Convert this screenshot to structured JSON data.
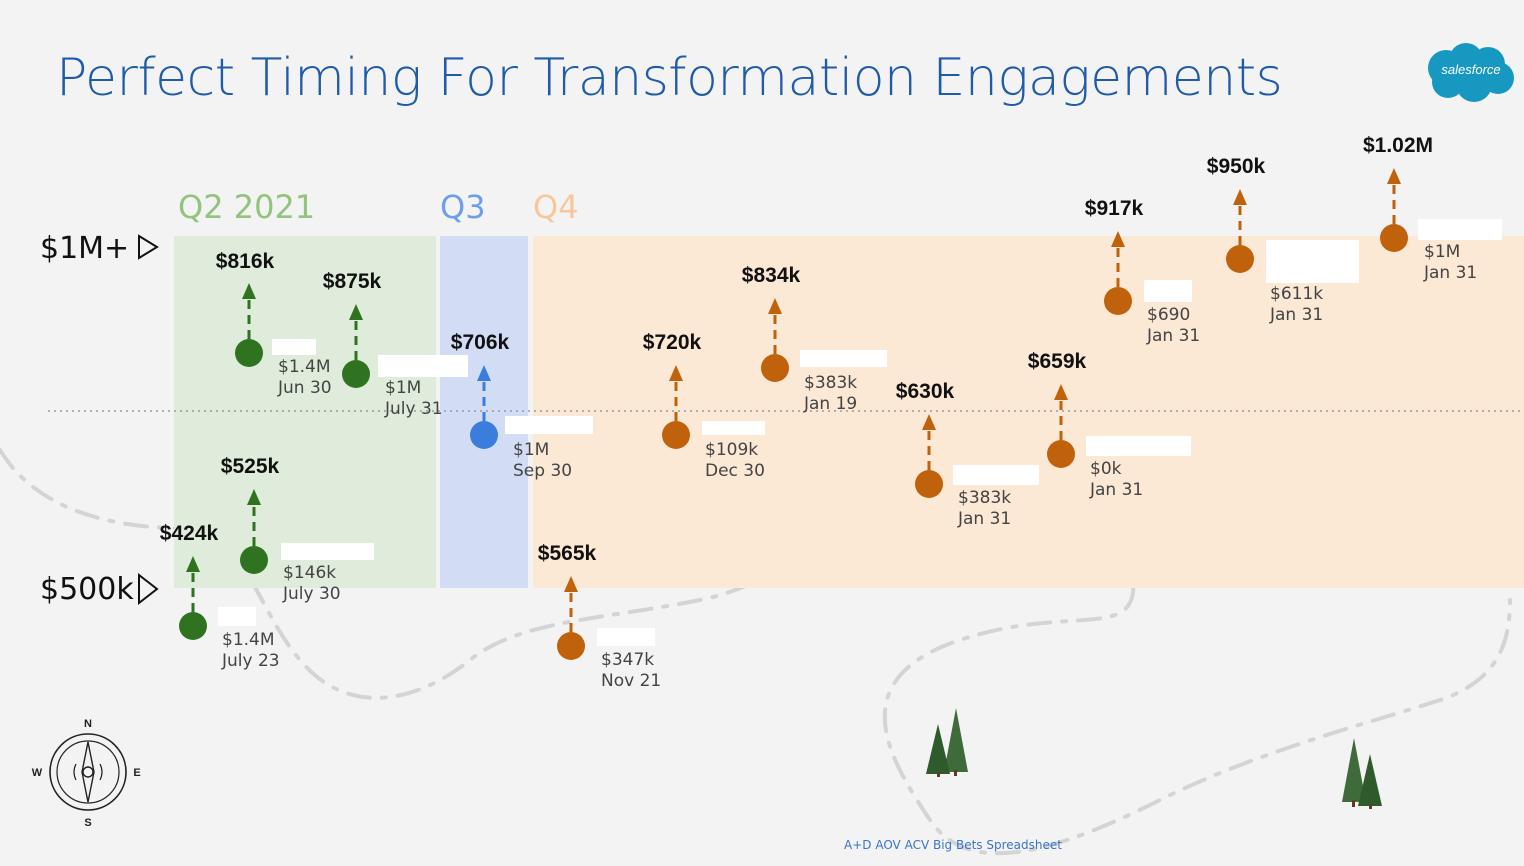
{
  "title": "Perfect Timing For Transformation Engagements",
  "logo_text": "salesforce",
  "source_note": "A+D AOV ACV Big Bets Spreadsheet",
  "compass": {
    "n": "N",
    "s": "S",
    "e": "E",
    "w": "W"
  },
  "chart_data": {
    "type": "scatter",
    "title": "Perfect Timing For Transformation Engagements",
    "y_markers": [
      {
        "label": "$1M+",
        "value": 1000
      },
      {
        "label": "$500k",
        "value": 500
      }
    ],
    "periods": [
      {
        "label": "Q2 2021",
        "color": "#92c47d",
        "band": "#dfecdb"
      },
      {
        "label": "Q3",
        "color": "#6d9eeb",
        "band": "#d2ddf5"
      },
      {
        "label": "Q4",
        "color": "#f7c89b",
        "band": "#fbe8d5"
      }
    ],
    "colors": {
      "Q2": "#2f7320",
      "Q3": "#3b7ddd",
      "Q4": "#c0620c"
    },
    "deals": [
      {
        "id": "q2a",
        "period": "Q2",
        "aov": "$816k",
        "amount": "$1.4M",
        "date": "Jun 30"
      },
      {
        "id": "q2b",
        "period": "Q2",
        "aov": "$875k",
        "amount": "$1M",
        "date": "July 31"
      },
      {
        "id": "q2c",
        "period": "Q2",
        "aov": "$525k",
        "amount": "$146k",
        "date": "July 30"
      },
      {
        "id": "q2d",
        "period": "Q2",
        "aov": "$424k",
        "amount": "$1.4M",
        "date": "July 23"
      },
      {
        "id": "q3a",
        "period": "Q3",
        "aov": "$706k",
        "amount": "$1M",
        "date": "Sep 30"
      },
      {
        "id": "q4a",
        "period": "Q4",
        "aov": "$565k",
        "amount": "$347k",
        "date": "Nov 21"
      },
      {
        "id": "q4b",
        "period": "Q4",
        "aov": "$720k",
        "amount": "$109k",
        "date": "Dec 30"
      },
      {
        "id": "q4c",
        "period": "Q4",
        "aov": "$834k",
        "amount": "$383k",
        "date": "Jan 19"
      },
      {
        "id": "q4d",
        "period": "Q4",
        "aov": "$630k",
        "amount": "$383k",
        "date": "Jan 31"
      },
      {
        "id": "q4e",
        "period": "Q4",
        "aov": "$659k",
        "amount": "$0k",
        "date": "Jan 31"
      },
      {
        "id": "q4f",
        "period": "Q4",
        "aov": "$917k",
        "amount": "$690",
        "date": "Jan 31"
      },
      {
        "id": "q4g",
        "period": "Q4",
        "aov": "$950k",
        "amount": "$611k",
        "date": "Jan 31"
      },
      {
        "id": "q4h",
        "period": "Q4",
        "aov": "$1.02M",
        "amount": "$1M",
        "date": "Jan 31"
      }
    ]
  }
}
